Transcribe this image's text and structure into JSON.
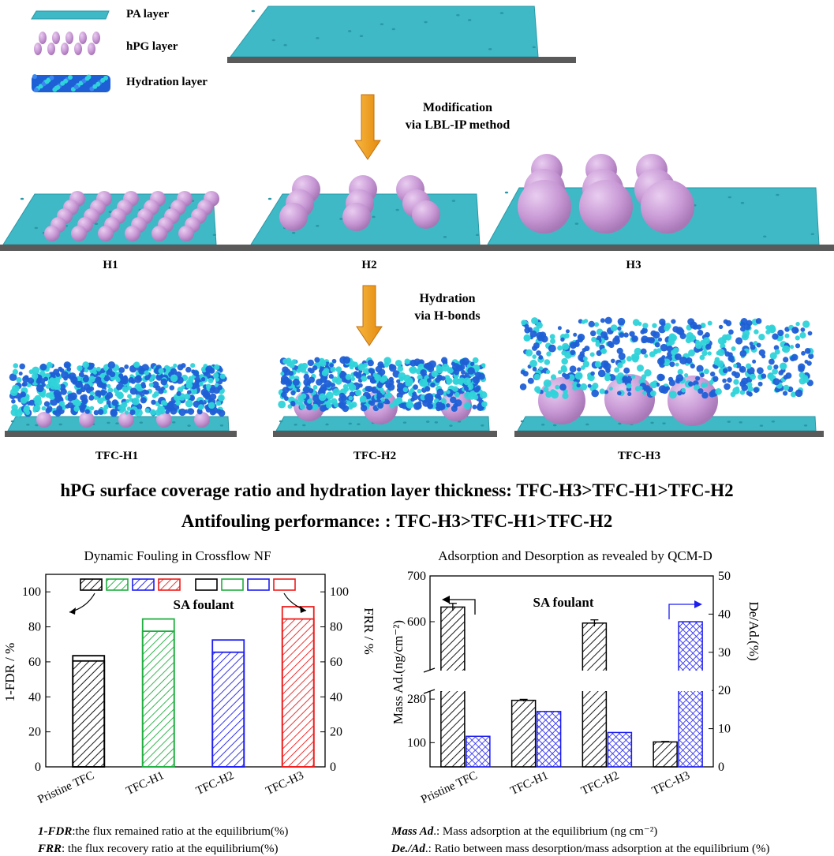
{
  "legend": {
    "pa": "PA layer",
    "hpg": "hPG layer",
    "hydration": "Hydration layer"
  },
  "steps": {
    "modification_line1": "Modification",
    "modification_line2": "via LBL-IP method",
    "hydration_line1": "Hydration",
    "hydration_line2": "via H-bonds"
  },
  "stages": {
    "h": [
      "H1",
      "H2",
      "H3"
    ],
    "tfc": [
      "TFC-H1",
      "TFC-H2",
      "TFC-H3"
    ]
  },
  "headlines": {
    "line1": "hPG surface coverage ratio and hydration layer thickness: TFC-H3>TFC-H1>TFC-H2",
    "line2": "Antifouling performance: : TFC-H3>TFC-H1>TFC-H2"
  },
  "colors": {
    "pa": "#3fb9c6",
    "pa_dark": "#2a97a6",
    "hpg": "#c99ad6",
    "hydration_blue": "#1f5fd6",
    "hydration_cyan": "#2fd3d9",
    "arrow": "#f5a21b",
    "substrate": "#5a5a5a",
    "black": "#000000",
    "green": "#1fae3f",
    "blue": "#1e1ef0",
    "red": "#ee1c1c"
  },
  "chart_data": [
    {
      "type": "bar",
      "title": "Dynamic Fouling in Crossflow NF",
      "categories": [
        "Pristine TFC",
        "TFC-H1",
        "TFC-H2",
        "TFC-H3"
      ],
      "ylabel": "1-FDR / %",
      "y2label": "FRR / %",
      "ylim": [
        0,
        110
      ],
      "y2lim": [
        0,
        110
      ],
      "yticks": [
        0,
        20,
        40,
        60,
        80,
        100
      ],
      "y2ticks": [
        0,
        20,
        40,
        60,
        80,
        100
      ],
      "annotation": "SA foulant",
      "series": [
        {
          "name": "1-FDR",
          "values": [
            60.5,
            77.5,
            65.5,
            84.5
          ]
        },
        {
          "name": "FRR",
          "values": [
            63.5,
            84.5,
            72.5,
            91.5
          ]
        }
      ],
      "bar_colors": [
        "#000000",
        "#1fae3f",
        "#1e1ef0",
        "#ee1c1c"
      ],
      "notes": [
        {
          "term": "1-FDR",
          "text": ":the flux remained ratio at the equilibrium(%)"
        },
        {
          "term": "FRR",
          "text": ": the flux recovery ratio at the equilibrium(%)"
        }
      ]
    },
    {
      "type": "bar",
      "title": "Adsorption and Desorption as revealed by QCM-D",
      "categories": [
        "Pristine TFC",
        "TFC-H1",
        "TFC-H2",
        "TFC-H3"
      ],
      "ylabel": "Mass Ad.(ng/cm⁻²)",
      "y2label": "De/Ad.(%)",
      "yticks": [
        100,
        280,
        600,
        700
      ],
      "y2lim": [
        0,
        50
      ],
      "y2ticks": [
        0,
        10,
        20,
        30,
        40,
        50
      ],
      "broken_axis": {
        "lower": [
          0,
          300
        ],
        "upper": [
          500,
          700
        ]
      },
      "annotation": "SA foulant",
      "series": [
        {
          "name": "Mass Ad.",
          "values": [
            632,
            275,
            597,
            103
          ],
          "errors": [
            8,
            4,
            7,
            2
          ]
        },
        {
          "name": "De/Ad.",
          "values": [
            8,
            14.5,
            9,
            38
          ]
        }
      ],
      "notes": [
        {
          "term": "Mass Ad",
          "text": ".: Mass adsorption at the equilibrium (ng cm⁻²)"
        },
        {
          "term": "De./Ad",
          "text": ".: Ratio between mass desorption/mass adsorption at the equilibrium (%)"
        }
      ]
    }
  ]
}
